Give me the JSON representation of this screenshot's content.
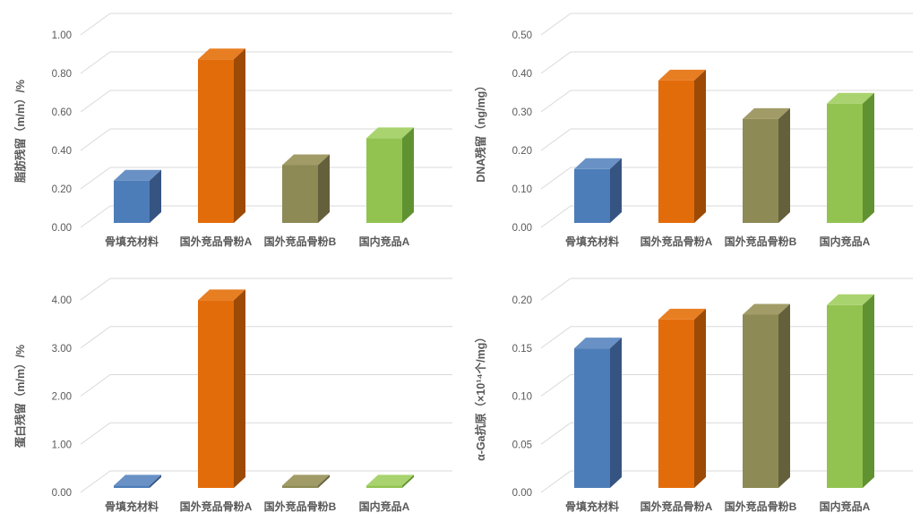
{
  "page": {
    "background": "#ffffff",
    "text_color": "#595959",
    "gridline_color": "#d9d9d9"
  },
  "categories": [
    "骨填充材料",
    "国外竞品骨粉A",
    "国外竞品骨粉B",
    "国内竞品A"
  ],
  "bar_colors": [
    {
      "name": "blue",
      "front": "#4d7db8",
      "top": "#6991c5",
      "side": "#365482"
    },
    {
      "name": "orange",
      "front": "#e36c0a",
      "top": "#e87e22",
      "side": "#9c4a06"
    },
    {
      "name": "olive",
      "front": "#8e8a55",
      "top": "#a19b67",
      "side": "#64603c"
    },
    {
      "name": "green",
      "front": "#92c351",
      "top": "#a9d36e",
      "side": "#619231"
    }
  ],
  "chart_data": [
    {
      "id": "fat-residue",
      "type": "bar",
      "title": "",
      "xlabel": "",
      "ylabel": "脂肪残留（m/m）/%",
      "categories": [
        "骨填充材料",
        "国外竞品骨粉A",
        "国外竞品骨粉B",
        "国内竞品A"
      ],
      "values": [
        0.22,
        0.85,
        0.3,
        0.44
      ],
      "ylim": [
        0,
        1.0
      ],
      "yticks": [
        "0.00",
        "0.20",
        "0.40",
        "0.60",
        "0.80",
        "1.00"
      ],
      "grid": true,
      "legend": "none",
      "style": "3d-column"
    },
    {
      "id": "dna-residue",
      "type": "bar",
      "title": "",
      "xlabel": "",
      "ylabel": "DNA残留（ng/mg）",
      "categories": [
        "骨填充材料",
        "国外竞品骨粉A",
        "国外竞品骨粉B",
        "国内竞品A"
      ],
      "values": [
        0.14,
        0.37,
        0.27,
        0.31
      ],
      "ylim": [
        0,
        0.5
      ],
      "yticks": [
        "0.00",
        "0.10",
        "0.20",
        "0.30",
        "0.40",
        "0.50"
      ],
      "grid": true,
      "legend": "none",
      "style": "3d-column"
    },
    {
      "id": "protein-residue",
      "type": "bar",
      "title": "",
      "xlabel": "",
      "ylabel": "蛋白残留（m/m）/%",
      "categories": [
        "骨填充材料",
        "国外竞品骨粉A",
        "国外竞品骨粉B",
        "国内竞品A"
      ],
      "values": [
        0.05,
        3.9,
        0.05,
        0.05
      ],
      "ylim": [
        0,
        4.0
      ],
      "yticks": [
        "0.00",
        "1.00",
        "2.00",
        "3.00",
        "4.00"
      ],
      "grid": true,
      "legend": "none",
      "style": "3d-column"
    },
    {
      "id": "alpha-gal-antigen",
      "type": "bar",
      "title": "",
      "xlabel": "",
      "ylabel": "α-Ga抗原（×10¹⁴个/mg）",
      "categories": [
        "骨填充材料",
        "国外竞品骨粉A",
        "国外竞品骨粉B",
        "国内竞品A"
      ],
      "values": [
        0.145,
        0.175,
        0.18,
        0.19
      ],
      "ylim": [
        0,
        0.2
      ],
      "yticks": [
        "0.00",
        "0.05",
        "0.10",
        "0.15",
        "0.20"
      ],
      "grid": true,
      "legend": "none",
      "style": "3d-column"
    }
  ]
}
